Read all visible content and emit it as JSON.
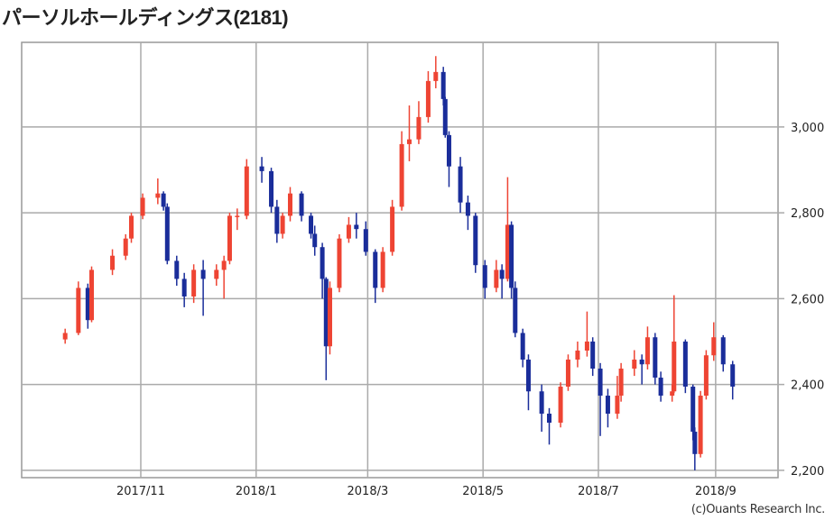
{
  "title": "パーソルホールディングス(2181)",
  "copyright": "(c)Ouants Research Inc.",
  "colors": {
    "up": "#ee4433",
    "down": "#1a2d9a",
    "grid": "#aaaaaa",
    "border": "#999999"
  },
  "chart_data": {
    "type": "candlestick",
    "title": "パーソルホールディングス(2181)",
    "xlim": [
      "2017-08-30",
      "2018-10-04"
    ],
    "ylim": [
      2183,
      3197
    ],
    "grid": true,
    "y_axis_position": "right",
    "y_ticks": [
      {
        "value": 2200,
        "label": "2,200"
      },
      {
        "value": 2400,
        "label": "2,400"
      },
      {
        "value": 2600,
        "label": "2,600"
      },
      {
        "value": 2800,
        "label": "2,800"
      },
      {
        "value": 3000,
        "label": "3,000"
      }
    ],
    "x_ticks": [
      {
        "date": "2017-11-01",
        "label": "2017/11"
      },
      {
        "date": "2018-01-01",
        "label": "2018/1"
      },
      {
        "date": "2018-03-01",
        "label": "2018/3"
      },
      {
        "date": "2018-05-01",
        "label": "2018/5"
      },
      {
        "date": "2018-07-01",
        "label": "2018/7"
      },
      {
        "date": "2018-09-01",
        "label": "2018/9"
      }
    ],
    "candle_fields": [
      "date",
      "open",
      "high",
      "low",
      "close"
    ],
    "candles": [
      [
        "2017-09-22",
        2505,
        2530,
        2495,
        2520
      ],
      [
        "2017-09-29",
        2520,
        2640,
        2515,
        2625
      ],
      [
        "2017-10-04",
        2625,
        2635,
        2530,
        2550
      ],
      [
        "2017-10-06",
        2550,
        2675,
        2545,
        2667
      ],
      [
        "2017-10-17",
        2667,
        2715,
        2655,
        2700
      ],
      [
        "2017-10-24",
        2700,
        2750,
        2690,
        2740
      ],
      [
        "2017-10-27",
        2740,
        2800,
        2730,
        2793
      ],
      [
        "2017-11-02",
        2793,
        2845,
        2785,
        2835
      ],
      [
        "2017-11-10",
        2835,
        2880,
        2820,
        2845
      ],
      [
        "2017-11-13",
        2845,
        2850,
        2805,
        2814
      ],
      [
        "2017-11-15",
        2814,
        2822,
        2680,
        2688
      ],
      [
        "2017-11-20",
        2688,
        2700,
        2630,
        2646
      ],
      [
        "2017-11-24",
        2646,
        2660,
        2580,
        2605
      ],
      [
        "2017-11-29",
        2605,
        2680,
        2590,
        2667
      ],
      [
        "2017-12-04",
        2667,
        2690,
        2560,
        2646
      ],
      [
        "2017-12-11",
        2646,
        2680,
        2630,
        2667
      ],
      [
        "2017-12-15",
        2667,
        2700,
        2600,
        2688
      ],
      [
        "2017-12-18",
        2688,
        2800,
        2680,
        2793
      ],
      [
        "2017-12-22",
        2793,
        2810,
        2760,
        2793
      ],
      [
        "2017-12-27",
        2793,
        2925,
        2785,
        2908
      ],
      [
        "2018-01-04",
        2908,
        2930,
        2870,
        2897
      ],
      [
        "2018-01-09",
        2897,
        2905,
        2800,
        2814
      ],
      [
        "2018-01-12",
        2814,
        2830,
        2730,
        2751
      ],
      [
        "2018-01-15",
        2751,
        2800,
        2740,
        2793
      ],
      [
        "2018-01-19",
        2793,
        2860,
        2780,
        2845
      ],
      [
        "2018-01-25",
        2845,
        2850,
        2780,
        2793
      ],
      [
        "2018-01-30",
        2793,
        2800,
        2740,
        2751
      ],
      [
        "2018-02-01",
        2751,
        2770,
        2700,
        2720
      ],
      [
        "2018-02-05",
        2720,
        2730,
        2600,
        2646
      ],
      [
        "2018-02-07",
        2646,
        2650,
        2410,
        2489
      ],
      [
        "2018-02-09",
        2489,
        2640,
        2470,
        2625
      ],
      [
        "2018-02-14",
        2625,
        2750,
        2615,
        2740
      ],
      [
        "2018-02-19",
        2740,
        2790,
        2730,
        2772
      ],
      [
        "2018-02-23",
        2772,
        2800,
        2740,
        2762
      ],
      [
        "2018-02-28",
        2762,
        2780,
        2700,
        2709
      ],
      [
        "2018-03-05",
        2709,
        2715,
        2590,
        2625
      ],
      [
        "2018-03-09",
        2625,
        2720,
        2615,
        2709
      ],
      [
        "2018-03-14",
        2709,
        2830,
        2700,
        2814
      ],
      [
        "2018-03-19",
        2814,
        2990,
        2805,
        2960
      ],
      [
        "2018-03-23",
        2960,
        3050,
        2920,
        2971
      ],
      [
        "2018-03-28",
        2971,
        3060,
        2960,
        3023
      ],
      [
        "2018-04-02",
        3023,
        3130,
        3010,
        3107
      ],
      [
        "2018-04-06",
        3107,
        3165,
        3090,
        3128
      ],
      [
        "2018-04-10",
        3128,
        3140,
        3050,
        3065
      ],
      [
        "2018-04-11",
        3065,
        3070,
        2975,
        2981
      ],
      [
        "2018-04-13",
        2981,
        2990,
        2860,
        2908
      ],
      [
        "2018-04-19",
        2908,
        2930,
        2800,
        2824
      ],
      [
        "2018-04-23",
        2824,
        2840,
        2760,
        2793
      ],
      [
        "2018-04-27",
        2793,
        2800,
        2660,
        2678
      ],
      [
        "2018-05-02",
        2678,
        2690,
        2600,
        2625
      ],
      [
        "2018-05-08",
        2625,
        2690,
        2615,
        2667
      ],
      [
        "2018-05-11",
        2667,
        2680,
        2600,
        2646
      ],
      [
        "2018-05-14",
        2646,
        2883,
        2640,
        2772
      ],
      [
        "2018-05-16",
        2772,
        2780,
        2600,
        2625
      ],
      [
        "2018-05-18",
        2625,
        2640,
        2510,
        2520
      ],
      [
        "2018-05-22",
        2520,
        2530,
        2440,
        2458
      ],
      [
        "2018-05-25",
        2458,
        2470,
        2340,
        2384
      ],
      [
        "2018-06-01",
        2384,
        2400,
        2290,
        2332
      ],
      [
        "2018-06-05",
        2332,
        2345,
        2260,
        2311
      ],
      [
        "2018-06-11",
        2311,
        2405,
        2300,
        2395
      ],
      [
        "2018-06-15",
        2395,
        2470,
        2385,
        2458
      ],
      [
        "2018-06-20",
        2458,
        2500,
        2440,
        2479
      ],
      [
        "2018-06-25",
        2479,
        2570,
        2465,
        2500
      ],
      [
        "2018-06-28",
        2500,
        2510,
        2420,
        2437
      ],
      [
        "2018-07-02",
        2437,
        2450,
        2280,
        2374
      ],
      [
        "2018-07-06",
        2374,
        2390,
        2300,
        2332
      ],
      [
        "2018-07-11",
        2332,
        2420,
        2320,
        2374
      ],
      [
        "2018-07-13",
        2374,
        2450,
        2360,
        2437
      ],
      [
        "2018-07-20",
        2437,
        2480,
        2420,
        2458
      ],
      [
        "2018-07-24",
        2458,
        2470,
        2400,
        2447
      ],
      [
        "2018-07-27",
        2447,
        2535,
        2435,
        2510
      ],
      [
        "2018-07-31",
        2510,
        2520,
        2400,
        2416
      ],
      [
        "2018-08-03",
        2416,
        2430,
        2360,
        2374
      ],
      [
        "2018-08-09",
        2374,
        2400,
        2360,
        2384
      ],
      [
        "2018-08-10",
        2384,
        2608,
        2380,
        2500
      ],
      [
        "2018-08-16",
        2500,
        2505,
        2380,
        2395
      ],
      [
        "2018-08-20",
        2395,
        2400,
        2270,
        2290
      ],
      [
        "2018-08-21",
        2290,
        2300,
        2200,
        2238
      ],
      [
        "2018-08-24",
        2238,
        2385,
        2230,
        2374
      ],
      [
        "2018-08-27",
        2374,
        2480,
        2365,
        2468
      ],
      [
        "2018-08-31",
        2468,
        2545,
        2455,
        2510
      ],
      [
        "2018-09-05",
        2510,
        2515,
        2430,
        2447
      ],
      [
        "2018-09-10",
        2447,
        2455,
        2365,
        2395
      ]
    ]
  }
}
